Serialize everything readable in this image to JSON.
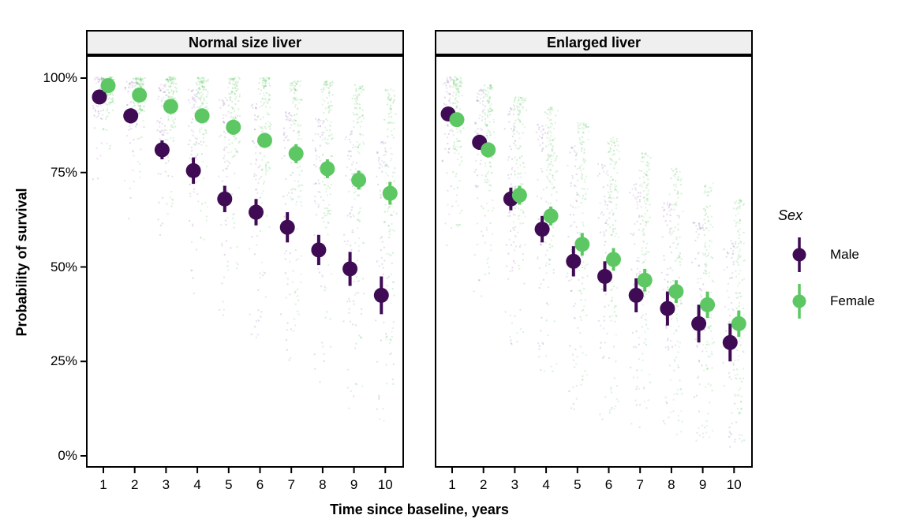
{
  "chart_data": {
    "type": "pointrange-with-jitter-scatter",
    "xlabel": "Time since baseline, years",
    "ylabel": "Probability of survival",
    "x": [
      1,
      2,
      3,
      4,
      5,
      6,
      7,
      8,
      9,
      10
    ],
    "x_tick_labels": [
      "1",
      "2",
      "3",
      "4",
      "5",
      "6",
      "7",
      "8",
      "9",
      "10"
    ],
    "y_tick_labels": [
      "0%",
      "25%",
      "50%",
      "75%",
      "100%"
    ],
    "y_tick_values": [
      0,
      25,
      50,
      75,
      100
    ],
    "ylim": [
      0,
      100
    ],
    "grid": "off",
    "legend": {
      "title": "Sex",
      "position": "right",
      "items": [
        {
          "label": "Male",
          "color": "#3E0B54"
        },
        {
          "label": "Female",
          "color": "#5DC863"
        }
      ]
    },
    "panels": [
      {
        "title": "Normal size liver",
        "series": [
          {
            "name": "Male",
            "color": "#3E0B54",
            "values": [
              95,
              90,
              81,
              75.5,
              68,
              64.5,
              60.5,
              54.5,
              49.5,
              42.5
            ],
            "ci_half_width": [
              1.5,
              2,
              2.5,
              3.5,
              3.5,
              3.5,
              4,
              4,
              4.5,
              5
            ]
          },
          {
            "name": "Female",
            "color": "#5DC863",
            "values": [
              98,
              95.5,
              92.5,
              90,
              87,
              83.5,
              80,
              76,
              73,
              69.5
            ],
            "ci_half_width": [
              1,
              1.5,
              1.5,
              2,
              2,
              2,
              2.5,
              2.5,
              2.5,
              3
            ]
          }
        ],
        "jitter_clouds": {
          "male": {
            "hi": [
              100,
              99,
              98,
              97,
              95,
              93,
              91,
              89,
              86,
              83
            ],
            "dense_lo": [
              88,
              82,
              74,
              67,
              60,
              54,
              48,
              42,
              36,
              30
            ],
            "tail_lo": [
              72,
              62,
              52,
              43,
              35,
              28,
              22,
              16,
              11,
              7
            ]
          },
          "female": {
            "hi": [
              100,
              100,
              100,
              100,
              100,
              100,
              99,
              99,
              98,
              97
            ],
            "dense_lo": [
              93,
              90,
              86,
              82,
              78,
              72,
              66,
              60,
              55,
              50
            ],
            "tail_lo": [
              80,
              72,
              62,
              55,
              48,
              40,
              32,
              25,
              18,
              12
            ]
          }
        }
      },
      {
        "title": "Enlarged liver",
        "series": [
          {
            "name": "Male",
            "color": "#3E0B54",
            "values": [
              90.5,
              83,
              68,
              60,
              51.5,
              47.5,
              42.5,
              39,
              35,
              30
            ],
            "ci_half_width": [
              1.5,
              2,
              3,
              3.5,
              4,
              4,
              4.5,
              4.5,
              5,
              5
            ]
          },
          {
            "name": "Female",
            "color": "#5DC863",
            "values": [
              89,
              81,
              69,
              63.5,
              56,
              52,
              46.5,
              43.5,
              40,
              35
            ],
            "ci_half_width": [
              1.5,
              2,
              2.5,
              2.5,
              3,
              3,
              3,
              3,
              3.5,
              3.5
            ]
          }
        ],
        "jitter_clouds": {
          "male": {
            "hi": [
              100,
              97,
              92,
              88,
              82,
              77,
              72,
              67,
              62,
              57
            ],
            "dense_lo": [
              78,
              68,
              52,
              44,
              36,
              30,
              25,
              21,
              17,
              14
            ],
            "tail_lo": [
              55,
              42,
              25,
              18,
              12,
              8,
              6,
              4,
              3,
              2
            ]
          },
          "female": {
            "hi": [
              100,
              98,
              95,
              92,
              88,
              84,
              80,
              76,
              72,
              68
            ],
            "dense_lo": [
              80,
              72,
              58,
              50,
              42,
              36,
              30,
              26,
              22,
              18
            ],
            "tail_lo": [
              60,
              48,
              30,
              22,
              15,
              10,
              7,
              5,
              4,
              3
            ]
          }
        }
      }
    ],
    "colors": {
      "male_point": "#3E0B54",
      "female_point": "#5DC863",
      "male_jitter": "#8B5FAE",
      "female_jitter": "#5DC863",
      "strip_background": "#EFEFEF",
      "panel_border": "#000000"
    }
  }
}
